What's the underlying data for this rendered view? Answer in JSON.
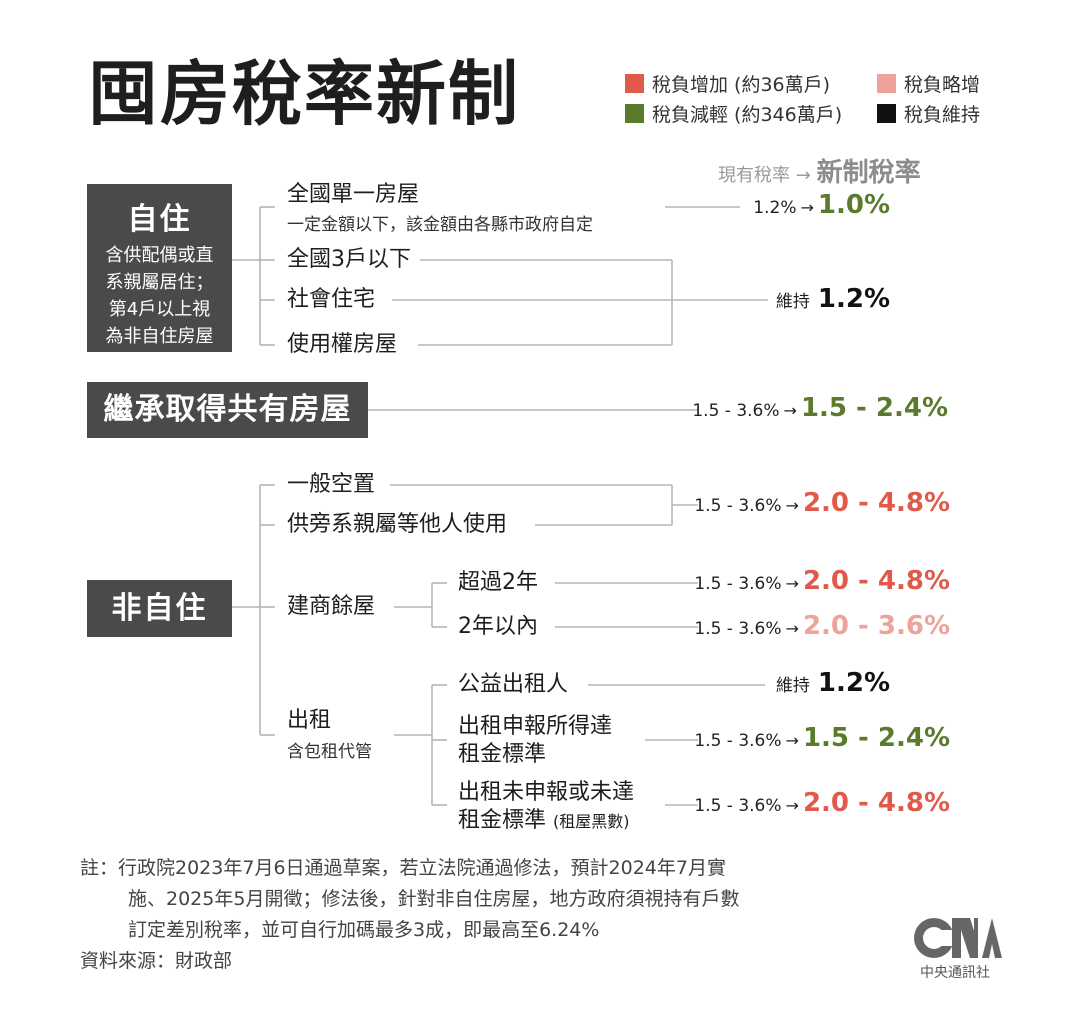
{
  "title": "囤房稅率新制",
  "legend": [
    {
      "label": "稅負增加 (約36萬戶)",
      "color": "#e05a4b"
    },
    {
      "label": "稅負略增",
      "color": "#eda39a"
    },
    {
      "label": "稅負減輕 (約346萬戶)",
      "color": "#5a7a2c"
    },
    {
      "label": "稅負維持",
      "color": "#111111"
    }
  ],
  "header": {
    "current": "現有稅率",
    "arrow": "→",
    "new": "新制稅率"
  },
  "colors": {
    "increase": "#e05a4b",
    "slight": "#eda39a",
    "decrease": "#5a7a2c",
    "maintain": "#111111",
    "box": "#4a4a4a",
    "line": "#b5b5b5"
  },
  "categories": {
    "self": {
      "title": "自住",
      "sub": [
        "含供配偶或直",
        "系親屬居住；",
        "第4戶以上視",
        "為非自住房屋"
      ]
    },
    "inherit": {
      "title": "繼承取得共有房屋"
    },
    "nonself": {
      "title": "非自住"
    }
  },
  "nodes": {
    "single_house": "全國單一房屋",
    "single_house_sub": "一定金額以下，該金額由各縣市政府自定",
    "three_or_less": "全國3戶以下",
    "social_housing": "社會住宅",
    "use_right": "使用權房屋",
    "vacant": "一般空置",
    "relatives": "供旁系親屬等他人使用",
    "builder": "建商餘屋",
    "over2": "超過2年",
    "within2": "2年以內",
    "rental": "出租",
    "rental_sub": "含包租代管",
    "public_landlord": "公益出租人",
    "rent_reported_1": "出租申報所得達",
    "rent_reported_2": "租金標準",
    "rent_unreported_1": "出租未申報或未達",
    "rent_unreported_2": "租金標準",
    "rent_unreported_note": "(租屋黑數)"
  },
  "rates": {
    "single": {
      "old": "1.2%",
      "arrow": "→",
      "new": "1.0%",
      "kind": "decrease"
    },
    "maintain1": {
      "old": "維持",
      "new": "1.2%",
      "kind": "maintain"
    },
    "inherit": {
      "old": "1.5 - 3.6%",
      "arrow": "→",
      "new": "1.5 - 2.4%",
      "kind": "decrease"
    },
    "vacant": {
      "old": "1.5 - 3.6%",
      "arrow": "→",
      "new": "2.0 - 4.8%",
      "kind": "increase"
    },
    "over2": {
      "old": "1.5 - 3.6%",
      "arrow": "→",
      "new": "2.0 - 4.8%",
      "kind": "increase"
    },
    "within2": {
      "old": "1.5 - 3.6%",
      "arrow": "→",
      "new": "2.0 - 3.6%",
      "kind": "slight"
    },
    "public": {
      "old": "維持",
      "new": "1.2%",
      "kind": "maintain"
    },
    "reported": {
      "old": "1.5 - 3.6%",
      "arrow": "→",
      "new": "1.5 - 2.4%",
      "kind": "decrease"
    },
    "unreported": {
      "old": "1.5 - 3.6%",
      "arrow": "→",
      "new": "2.0 - 4.8%",
      "kind": "increase"
    }
  },
  "notes": {
    "line1": "註：行政院2023年7月6日通過草案，若立法院通過修法，預計2024年7月實",
    "line2": "施、2025年5月開徵；修法後，針對非自住房屋，地方政府須視持有戶數",
    "line3": "訂定差別稅率，並可自行加碼最多3成，即最高至6.24%",
    "source": "資料來源：財政部"
  },
  "logo": {
    "mark": "CNA",
    "name": "中央通訊社"
  }
}
